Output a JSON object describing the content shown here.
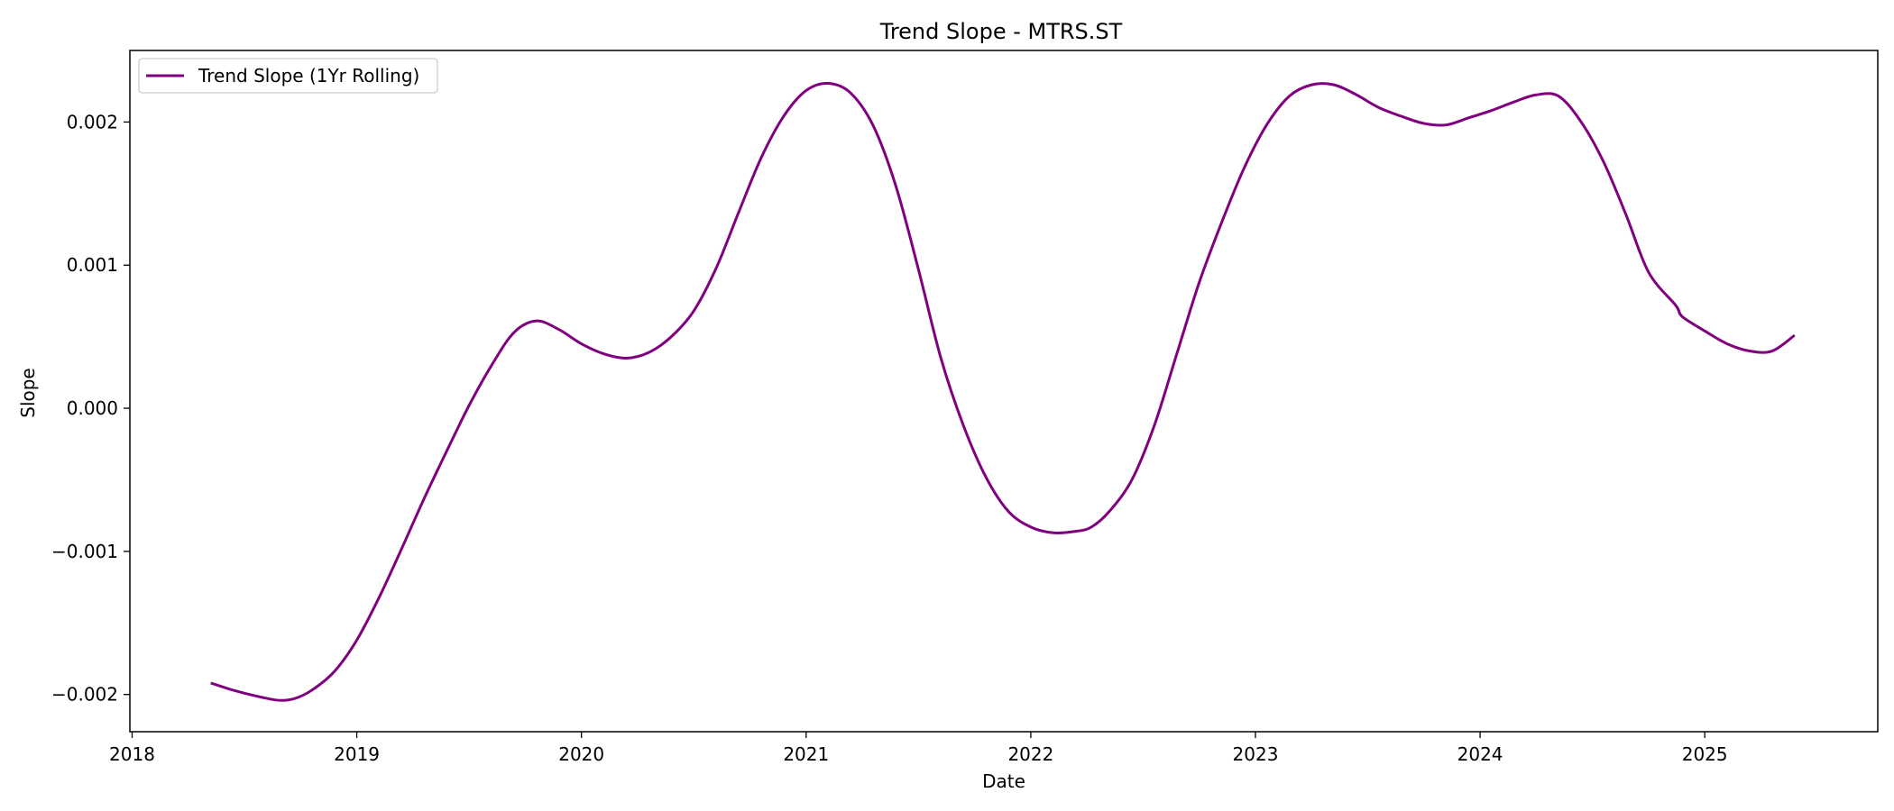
{
  "chart_data": {
    "type": "line",
    "title": "Trend Slope - MTRS.ST",
    "xlabel": "Date",
    "ylabel": "Slope",
    "xlim": [
      2017.99,
      2025.77
    ],
    "ylim": [
      -0.00226,
      0.0025
    ],
    "grid": false,
    "legend_position": "top-left",
    "x_ticks": [
      2018,
      2019,
      2020,
      2021,
      2022,
      2023,
      2024,
      2025
    ],
    "x_tick_labels": [
      "2018",
      "2019",
      "2020",
      "2021",
      "2022",
      "2023",
      "2024",
      "2025"
    ],
    "y_ticks": [
      -0.002,
      -0.001,
      0.0,
      0.001,
      0.002
    ],
    "y_tick_labels": [
      "−0.002",
      "−0.001",
      "0.000",
      "0.001",
      "0.002"
    ],
    "series": [
      {
        "name": "Trend Slope (1Yr Rolling)",
        "color": "#800080",
        "x": [
          2018.35,
          2018.45,
          2018.55,
          2018.65,
          2018.72,
          2018.8,
          2018.9,
          2019.0,
          2019.1,
          2019.2,
          2019.3,
          2019.4,
          2019.5,
          2019.6,
          2019.7,
          2019.8,
          2019.9,
          2020.0,
          2020.1,
          2020.2,
          2020.3,
          2020.4,
          2020.5,
          2020.6,
          2020.7,
          2020.8,
          2020.9,
          2021.0,
          2021.1,
          2021.2,
          2021.3,
          2021.4,
          2021.5,
          2021.6,
          2021.7,
          2021.8,
          2021.9,
          2022.0,
          2022.1,
          2022.2,
          2022.27,
          2022.35,
          2022.45,
          2022.55,
          2022.65,
          2022.75,
          2022.85,
          2022.95,
          2023.05,
          2023.15,
          2023.25,
          2023.35,
          2023.45,
          2023.55,
          2023.65,
          2023.75,
          2023.85,
          2023.95,
          2024.05,
          2024.15,
          2024.25,
          2024.35,
          2024.45,
          2024.55,
          2024.65,
          2024.75,
          2024.87,
          2024.9,
          2025.0,
          2025.1,
          2025.2,
          2025.3,
          2025.4
        ],
        "y": [
          -0.00192,
          -0.00197,
          -0.00201,
          -0.00204,
          -0.00203,
          -0.00197,
          -0.00184,
          -0.00162,
          -0.00132,
          -0.00098,
          -0.00063,
          -0.0003,
          2e-05,
          0.0003,
          0.00053,
          0.00061,
          0.00055,
          0.00045,
          0.00038,
          0.00035,
          0.00039,
          0.0005,
          0.00068,
          0.00098,
          0.00137,
          0.00175,
          0.00204,
          0.00222,
          0.00227,
          0.0022,
          0.00197,
          0.00155,
          0.00097,
          0.00035,
          -0.00012,
          -0.00048,
          -0.00072,
          -0.00083,
          -0.00087,
          -0.00086,
          -0.00083,
          -0.00072,
          -0.0005,
          -0.00012,
          0.00038,
          0.00088,
          0.0013,
          0.00168,
          0.00198,
          0.00218,
          0.00226,
          0.00226,
          0.00219,
          0.0021,
          0.00204,
          0.00199,
          0.00198,
          0.00203,
          0.00208,
          0.00214,
          0.00219,
          0.00218,
          0.002,
          0.00172,
          0.00135,
          0.00095,
          0.00072,
          0.00064,
          0.00054,
          0.00045,
          0.0004,
          0.0004,
          0.00051
        ]
      }
    ]
  }
}
